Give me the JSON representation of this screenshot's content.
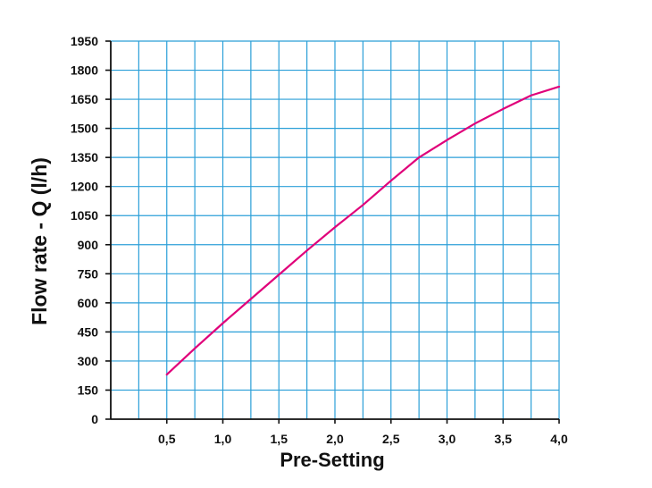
{
  "chart_data": {
    "type": "line",
    "title": "",
    "xlabel": "Pre-Setting",
    "ylabel": "Flow rate - Q (l/h)",
    "x_tick_labels": [
      "0,5",
      "1,0",
      "1,5",
      "2,0",
      "2,5",
      "3,0",
      "3,5",
      "4,0"
    ],
    "y_tick_labels": [
      "0",
      "150",
      "300",
      "450",
      "600",
      "750",
      "900",
      "1050",
      "1200",
      "1350",
      "1500",
      "1650",
      "1800",
      "1950"
    ],
    "xlim": [
      0,
      4.0
    ],
    "ylim": [
      0,
      1950
    ],
    "x_grid_step": 0.25,
    "y_grid_step": 150,
    "grid": true,
    "line_color": "#e0007a",
    "grid_color": "#2b9fd8",
    "axis_color": "#111111",
    "series": [
      {
        "x": [
          0.5,
          0.75,
          1.0,
          1.25,
          1.5,
          1.75,
          2.0,
          2.25,
          2.5,
          2.75,
          3.0,
          3.25,
          3.5,
          3.75,
          4.0
        ],
        "y": [
          230,
          365,
          495,
          620,
          745,
          870,
          990,
          1105,
          1230,
          1350,
          1440,
          1525,
          1600,
          1670,
          1715
        ]
      }
    ]
  }
}
